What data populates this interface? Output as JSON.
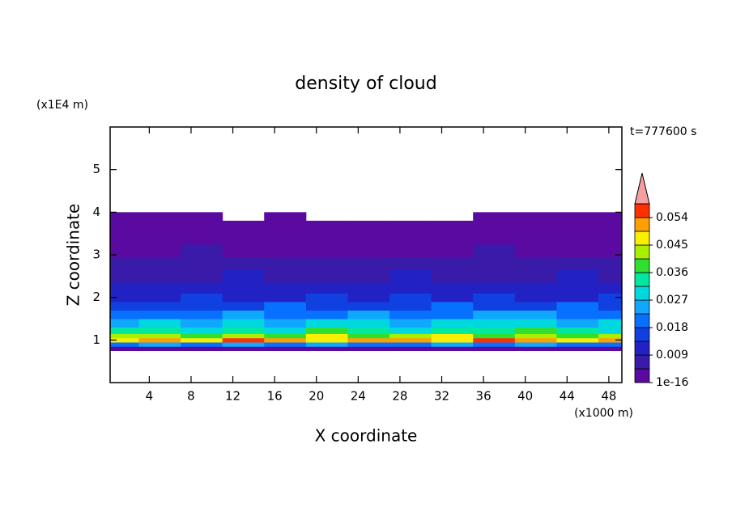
{
  "chart_data": {
    "type": "contour",
    "title": "density of cloud",
    "x_label": "X coordinate",
    "y_label": "Z coordinate",
    "x_unit": "(x1000 m)",
    "y_unit": "(x1E4 m)",
    "time_label": "t=777600 s",
    "xlim": [
      0.25,
      49.25
    ],
    "ylim": [
      0,
      6
    ],
    "xticks": [
      4,
      8,
      12,
      16,
      20,
      24,
      28,
      32,
      36,
      40,
      44,
      48
    ],
    "yticks": [
      1,
      2,
      3,
      4,
      5
    ],
    "x": [
      1,
      5,
      9,
      13,
      17,
      21,
      25,
      29,
      33,
      37,
      41,
      45,
      49
    ],
    "y": [
      0.8,
      0.9,
      1.0,
      1.1,
      1.2,
      1.4,
      1.6,
      1.8,
      2.0,
      2.2,
      2.5,
      2.8,
      3.1,
      3.4,
      3.7,
      3.9
    ],
    "z": [
      [
        0.003,
        0.004,
        0.003,
        0.002,
        0.003,
        0.004,
        0.003,
        0.003,
        0.002,
        0.003,
        0.004,
        0.003,
        0.003
      ],
      [
        0.021,
        0.024,
        0.019,
        0.023,
        0.02,
        0.025,
        0.022,
        0.018,
        0.024,
        0.021,
        0.023,
        0.02,
        0.022
      ],
      [
        0.049,
        0.052,
        0.047,
        0.055,
        0.05,
        0.046,
        0.053,
        0.051,
        0.048,
        0.056,
        0.05,
        0.047,
        0.052
      ],
      [
        0.041,
        0.044,
        0.039,
        0.043,
        0.04,
        0.045,
        0.038,
        0.042,
        0.046,
        0.04,
        0.043,
        0.039,
        0.044
      ],
      [
        0.032,
        0.035,
        0.03,
        0.034,
        0.031,
        0.036,
        0.033,
        0.029,
        0.035,
        0.032,
        0.037,
        0.034,
        0.031
      ],
      [
        0.026,
        0.028,
        0.025,
        0.029,
        0.024,
        0.027,
        0.03,
        0.026,
        0.028,
        0.031,
        0.027,
        0.025,
        0.029
      ],
      [
        0.02,
        0.022,
        0.019,
        0.023,
        0.021,
        0.02,
        0.024,
        0.022,
        0.019,
        0.023,
        0.025,
        0.021,
        0.02
      ],
      [
        0.016,
        0.015,
        0.017,
        0.016,
        0.018,
        0.015,
        0.017,
        0.016,
        0.018,
        0.017,
        0.016,
        0.019,
        0.016
      ],
      [
        0.013,
        0.012,
        0.014,
        0.013,
        0.012,
        0.014,
        0.013,
        0.015,
        0.012,
        0.014,
        0.013,
        0.012,
        0.014
      ],
      [
        0.011,
        0.01,
        0.011,
        0.012,
        0.01,
        0.011,
        0.012,
        0.011,
        0.01,
        0.012,
        0.011,
        0.01,
        0.011
      ],
      [
        0.008,
        0.008,
        0.007,
        0.009,
        0.008,
        0.007,
        0.008,
        0.009,
        0.008,
        0.007,
        0.008,
        0.009,
        0.008
      ],
      [
        0.006,
        0.005,
        0.006,
        0.006,
        0.005,
        0.006,
        0.005,
        0.006,
        0.006,
        0.005,
        0.006,
        0.006,
        0.005
      ],
      [
        0.004,
        0.004,
        0.005,
        0.004,
        0.003,
        0.004,
        0.004,
        0.003,
        0.004,
        0.005,
        0.004,
        0.004,
        0.004
      ],
      [
        0.002,
        0.002,
        0.003,
        0.002,
        0.002,
        0.002,
        0.003,
        0.002,
        0.002,
        0.002,
        0.003,
        0.002,
        0.002
      ],
      [
        0.0008,
        0.0009,
        0.0007,
        0.0008,
        0.0009,
        0.0006,
        0.0007,
        0.0008,
        0.0009,
        0.0008,
        0.0007,
        0.0009,
        0.0008
      ],
      [
        0.0003,
        0.0003,
        0.0002,
        null,
        0.0003,
        null,
        null,
        null,
        null,
        0.0003,
        0.0002,
        0.0003,
        0.0003
      ]
    ],
    "levels": [
      1e-16,
      0.0045,
      0.009,
      0.0135,
      0.018,
      0.0225,
      0.027,
      0.0315,
      0.036,
      0.0405,
      0.045,
      0.0495,
      0.054,
      0.0585
    ],
    "colors": [
      "#5a0aa0",
      "#3a1aa8",
      "#2222c4",
      "#1040e0",
      "#0870ff",
      "#10a8ff",
      "#00d8e0",
      "#00e8a0",
      "#30e030",
      "#a8f000",
      "#f8f000",
      "#ffa000",
      "#ff3000"
    ],
    "over_color": "#f4a0a0",
    "colorbar_ticks": [
      1e-16,
      0.009,
      0.018,
      0.027,
      0.036,
      0.045,
      0.054
    ]
  }
}
